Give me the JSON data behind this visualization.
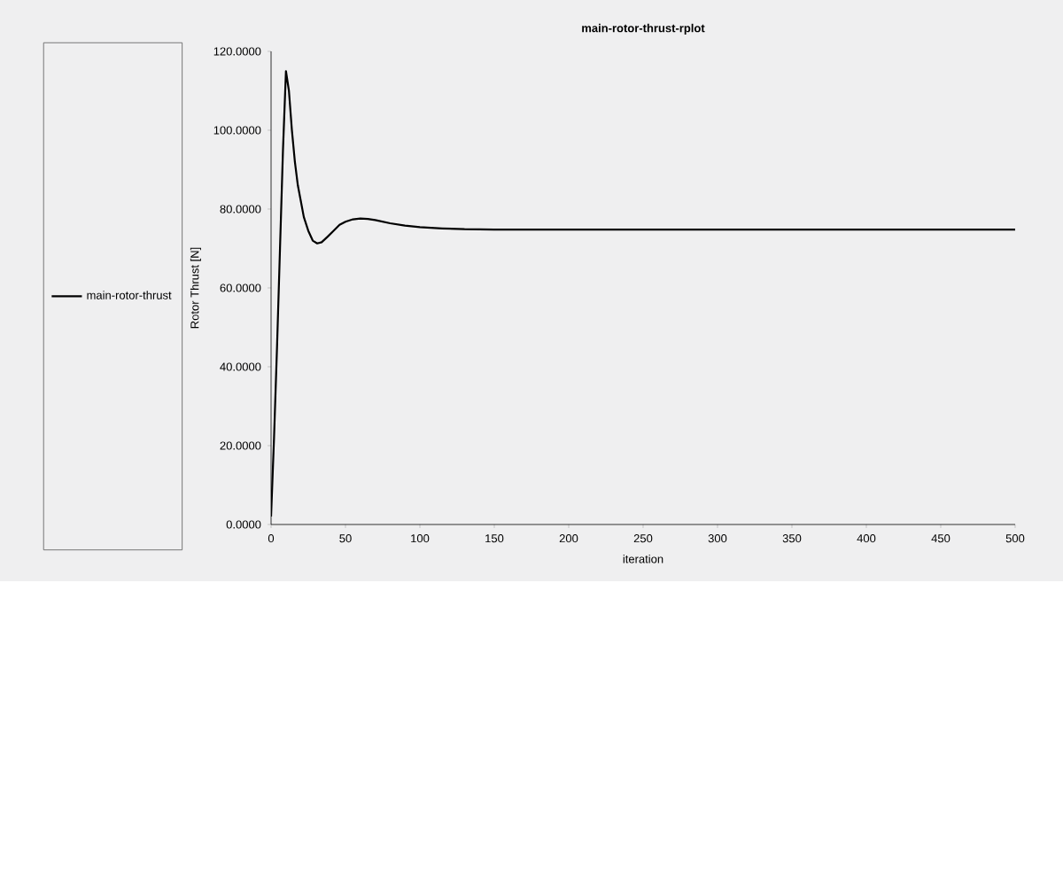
{
  "chart_data": {
    "type": "line",
    "title": "main-rotor-thrust-rplot",
    "xlabel": "iteration",
    "ylabel": "Rotor Thrust [N]",
    "x": [
      0,
      2,
      4,
      6,
      8,
      10,
      12,
      14,
      16,
      18,
      20,
      22,
      25,
      28,
      31,
      34,
      38,
      42,
      46,
      50,
      55,
      60,
      65,
      70,
      80,
      90,
      100,
      115,
      130,
      150,
      200,
      250,
      300,
      350,
      400,
      450,
      500
    ],
    "series": [
      {
        "name": "main-rotor-thrust",
        "color": "#000000",
        "values": [
          2,
          22,
          45,
          70,
          95,
          115,
          110,
          100,
          92,
          86,
          82,
          78,
          74.5,
          72,
          71.3,
          71.6,
          73,
          74.5,
          76,
          76.8,
          77.4,
          77.6,
          77.5,
          77.2,
          76.4,
          75.8,
          75.4,
          75.1,
          74.9,
          74.8,
          74.8,
          74.8,
          74.8,
          74.8,
          74.8,
          74.8,
          74.8
        ]
      }
    ],
    "xlim": [
      0,
      500
    ],
    "ylim": [
      0,
      120
    ],
    "xticks": [
      0,
      50,
      100,
      150,
      200,
      250,
      300,
      350,
      400,
      450,
      500
    ],
    "yticks": [
      {
        "value": 0,
        "label": "0.0000"
      },
      {
        "value": 20,
        "label": "20.0000"
      },
      {
        "value": 40,
        "label": "40.0000"
      },
      {
        "value": 60,
        "label": "60.0000"
      },
      {
        "value": 80,
        "label": "80.0000"
      },
      {
        "value": 100,
        "label": "100.0000"
      },
      {
        "value": 120,
        "label": "120.0000"
      }
    ],
    "legend": "left",
    "grid": false,
    "marker": "none",
    "line_style": "solid"
  }
}
